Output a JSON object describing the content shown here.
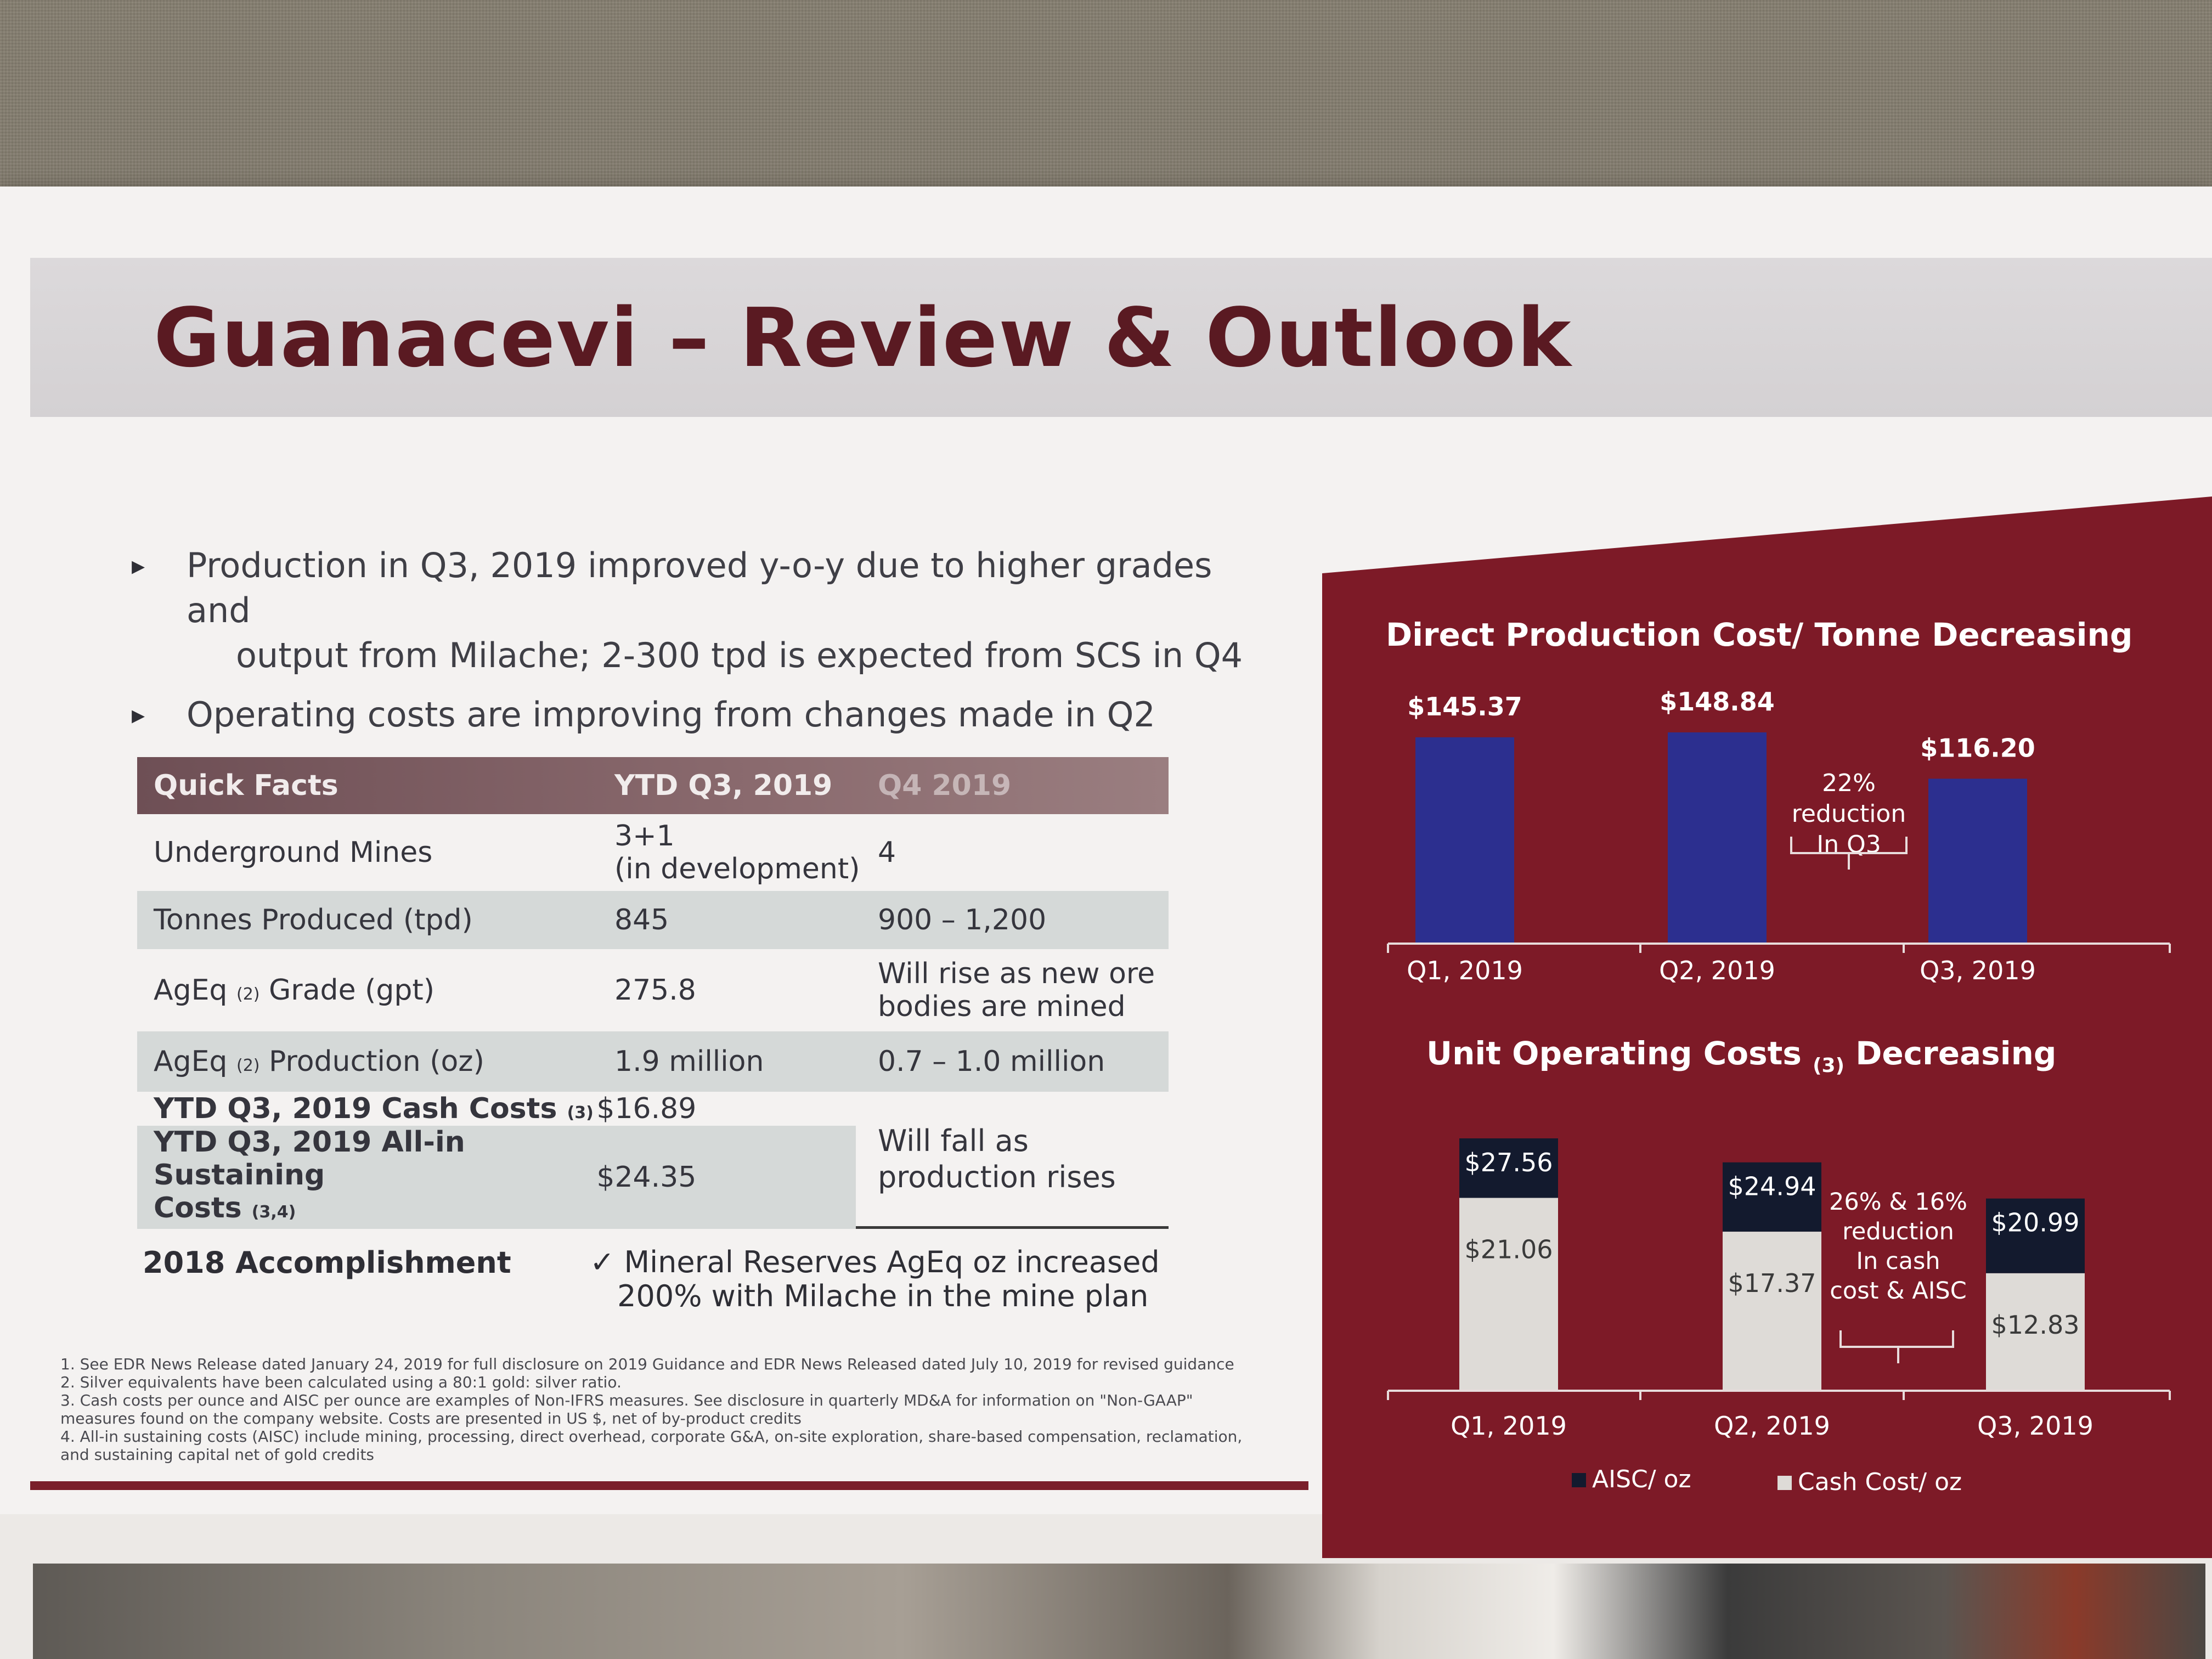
{
  "slide": {
    "title": "Guanacevi – Review & Outlook",
    "bullets": [
      {
        "line1": "Production in Q3, 2019 improved y-o-y due to higher grades and",
        "line2": "output from Milache;  2-300 tpd is expected from SCS in Q4"
      },
      {
        "line1": "Operating costs are improving from changes made in Q2",
        "line2": ""
      }
    ]
  },
  "quick_facts": {
    "headers": [
      "Quick Facts",
      "YTD Q3, 2019",
      "Q4 2019"
    ],
    "rows": [
      {
        "label": "Underground Mines",
        "ytd": "3+1",
        "ytd_note": "(in development)",
        "q4": "4"
      },
      {
        "label": "Tonnes Produced (tpd)",
        "ytd": "845",
        "q4": "900 – 1,200"
      },
      {
        "label_a": "AgEq",
        "label_sub": "(2)",
        "label_b": "Grade (gpt)",
        "ytd": "275.8",
        "q4_l1": "Will rise as new ore",
        "q4_l2": "bodies are mined"
      },
      {
        "label_a": "AgEq",
        "label_sub": "(2)",
        "label_b": "Production (oz)",
        "ytd": "1.9 million",
        "q4": "0.7 – 1.0 million"
      }
    ],
    "cash_costs": {
      "label": "YTD Q3, 2019 Cash Costs",
      "sub": "(3)",
      "ytd": "$16.89"
    },
    "aisc": {
      "label_l1": "YTD Q3, 2019 All-in Sustaining",
      "label_l2": "Costs",
      "sub": "(3,4)",
      "ytd": "$24.35"
    },
    "costs_q4_l1": "Will fall as",
    "costs_q4_l2": "production rises",
    "accomplishment": {
      "label": "2018 Accomplishment",
      "check": "✓",
      "l1": "Mineral Reserves AgEq oz increased",
      "l2": "200%  with Milache in the mine plan"
    }
  },
  "footnotes": [
    "1. See EDR News Release dated January 24, 2019 for full disclosure on 2019 Guidance and EDR News Released dated July 10, 2019 for revised guidance",
    "2. Silver equivalents have been calculated using a 80:1 gold: silver ratio.",
    "3. Cash costs per ounce and AISC per ounce are examples of Non-IFRS measures. See disclosure in quarterly MD&A for information on \"Non-GAAP\"",
    "measures found on the company website. Costs are presented in US $, net of by-product credits",
    "4. All-in sustaining costs (AISC) include mining, processing, direct overhead, corporate G&A, on-site exploration, share-based compensation, reclamation,",
    "and sustaining capital net of gold credits"
  ],
  "colors": {
    "title": "#5a1a22",
    "panel": "#7d1a27",
    "bar_blue": "#2c2f8f",
    "aisc": "#131a2e",
    "cash_cost": "#dedbd7"
  },
  "chart_data": [
    {
      "type": "bar",
      "title": "Direct Production Cost/ Tonne Decreasing",
      "categories": [
        "Q1, 2019",
        "Q2, 2019",
        "Q3, 2019"
      ],
      "values": [
        145.37,
        148.84,
        116.2
      ],
      "value_labels": [
        "$145.37",
        "$148.84",
        "$116.20"
      ],
      "annotation": [
        "22%",
        "reduction",
        "In Q3"
      ],
      "grid": false
    },
    {
      "type": "bar",
      "stacked": true,
      "title_a": "Unit Operating Costs",
      "title_sub": "(3)",
      "title_b": "Decreasing",
      "categories": [
        "Q1, 2019",
        "Q2, 2019",
        "Q3, 2019"
      ],
      "series": [
        {
          "name": "Cash Cost/ oz",
          "values": [
            21.06,
            17.37,
            12.83
          ],
          "labels": [
            "$21.06",
            "$17.37",
            "$12.83"
          ]
        },
        {
          "name": "AISC/ oz",
          "values": [
            27.56,
            24.94,
            20.99
          ],
          "labels": [
            "$27.56",
            "$24.94",
            "$20.99"
          ]
        }
      ],
      "annotation": [
        "26%  & 16%",
        "reduction",
        "In cash",
        "cost & AISC"
      ],
      "legend": "bottom",
      "grid": false
    }
  ]
}
